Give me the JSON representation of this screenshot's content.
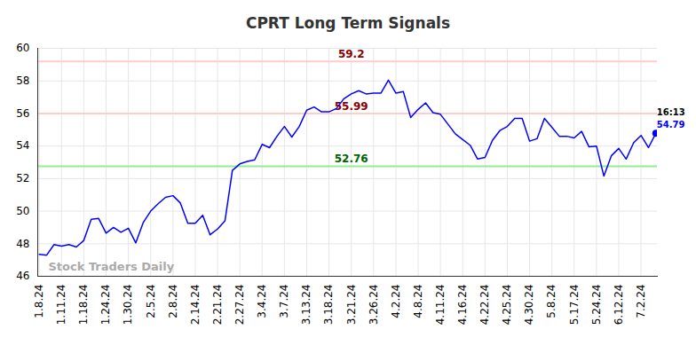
{
  "chart_data": {
    "type": "line",
    "title": "CPRT Long Term Signals",
    "watermark": "Stock Traders Daily",
    "color": "#0000ff",
    "categories": [
      "1.8.24",
      null,
      null,
      "1.11.24",
      null,
      null,
      "1.18.24",
      null,
      null,
      "1.24.24",
      null,
      null,
      "1.30.24",
      null,
      null,
      "2.5.24",
      null,
      null,
      "2.8.24",
      null,
      null,
      "2.14.24",
      null,
      null,
      "2.21.24",
      null,
      null,
      "2.27.24",
      null,
      null,
      "3.4.24",
      null,
      null,
      "3.7.24",
      null,
      null,
      "3.13.24",
      null,
      null,
      "3.18.24",
      null,
      null,
      "3.21.24",
      null,
      null,
      "3.26.24",
      null,
      null,
      "4.2.24",
      null,
      null,
      "4.8.24",
      null,
      null,
      "4.11.24",
      null,
      null,
      "4.16.24",
      null,
      null,
      "4.22.24",
      null,
      null,
      "4.25.24",
      null,
      null,
      "4.30.24",
      null,
      null,
      "5.8.24",
      null,
      null,
      "5.17.24",
      null,
      null,
      "5.24.24",
      null,
      null,
      "6.12.24",
      null,
      null,
      "7.2.24",
      null,
      null
    ],
    "values": [
      47.35,
      47.3,
      47.95,
      47.85,
      47.95,
      47.8,
      48.2,
      49.5,
      49.55,
      48.65,
      49.0,
      48.7,
      48.95,
      48.05,
      49.3,
      50.0,
      50.45,
      50.85,
      50.95,
      50.5,
      49.25,
      49.25,
      49.75,
      48.55,
      48.9,
      49.4,
      52.5,
      52.9,
      53.05,
      53.15,
      54.1,
      53.9,
      54.6,
      55.2,
      54.55,
      55.2,
      56.2,
      56.4,
      56.1,
      56.1,
      56.3,
      56.9,
      57.2,
      57.4,
      57.2,
      57.25,
      57.25,
      58.05,
      57.25,
      57.35,
      55.75,
      56.25,
      56.65,
      56.05,
      55.95,
      55.35,
      54.75,
      54.4,
      54.05,
      53.2,
      53.3,
      54.35,
      54.95,
      55.2,
      55.7,
      55.7,
      54.3,
      54.45,
      55.7,
      55.15,
      54.6,
      54.6,
      54.5,
      54.9,
      53.95,
      54.0,
      52.15,
      53.4,
      53.85,
      53.2,
      54.2,
      54.65,
      53.9,
      54.79
    ],
    "last_point": {
      "time": "16:13",
      "value": 54.79,
      "color": "#0000ff"
    },
    "lines": [
      {
        "value": 59.2,
        "label": "59.2",
        "color": "#ffcccc",
        "label_color": "#8b0000"
      },
      {
        "value": 55.99,
        "label": "55.99",
        "color": "#ffcccc",
        "label_color": "#8b0000"
      },
      {
        "value": 52.76,
        "label": "52.76",
        "color": "#90ee90",
        "label_color": "#006400"
      }
    ],
    "ylim": [
      46,
      60
    ],
    "yticks": [
      46,
      48,
      50,
      52,
      54,
      56,
      58,
      60
    ],
    "grid": true
  }
}
